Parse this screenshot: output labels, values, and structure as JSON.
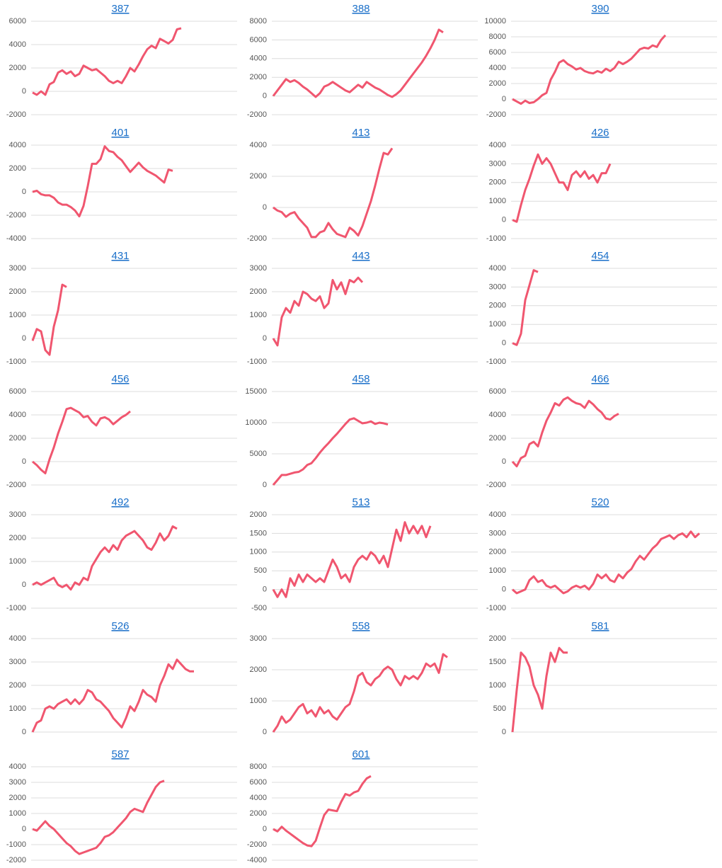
{
  "chart_data": [
    {
      "type": "line",
      "title": "387",
      "color": "#f0566f",
      "ylim": [
        -2000,
        6000
      ],
      "yticks": [
        -2000,
        0,
        2000,
        4000,
        6000
      ],
      "values": [
        -100,
        -300,
        0,
        -300,
        600,
        800,
        1600,
        1800,
        1500,
        1700,
        1300,
        1500,
        2200,
        2000,
        1800,
        1900,
        1600,
        1300,
        900,
        700,
        900,
        700,
        1300,
        2000,
        1700,
        2300,
        3000,
        3600,
        3900,
        3700,
        4500,
        4300,
        4100,
        4400,
        5300,
        5400
      ]
    },
    {
      "type": "line",
      "title": "388",
      "color": "#f0566f",
      "ylim": [
        -2000,
        8000
      ],
      "yticks": [
        -2000,
        0,
        2000,
        4000,
        6000,
        8000
      ],
      "values": [
        0,
        600,
        1200,
        1800,
        1500,
        1700,
        1400,
        1000,
        700,
        300,
        -100,
        300,
        1000,
        1200,
        1500,
        1200,
        900,
        600,
        400,
        800,
        1200,
        900,
        1500,
        1200,
        900,
        700,
        400,
        100,
        -100,
        200,
        600,
        1200,
        1800,
        2400,
        3000,
        3600,
        4300,
        5100,
        6000,
        7100,
        6800
      ]
    },
    {
      "type": "line",
      "title": "390",
      "color": "#f0566f",
      "ylim": [
        -2000,
        10000
      ],
      "yticks": [
        -2000,
        0,
        2000,
        4000,
        6000,
        8000,
        10000
      ],
      "values": [
        0,
        -300,
        -600,
        -200,
        -500,
        -400,
        0,
        500,
        800,
        2500,
        3500,
        4700,
        5000,
        4500,
        4200,
        3800,
        4000,
        3600,
        3400,
        3300,
        3600,
        3400,
        3900,
        3600,
        4000,
        4800,
        4500,
        4800,
        5200,
        5800,
        6400,
        6600,
        6500,
        6900,
        6700,
        7600,
        8200
      ]
    },
    {
      "type": "line",
      "title": "401",
      "color": "#f0566f",
      "ylim": [
        -4000,
        4000
      ],
      "yticks": [
        -4000,
        -2000,
        0,
        2000,
        4000
      ],
      "values": [
        0,
        100,
        -200,
        -300,
        -300,
        -500,
        -900,
        -1100,
        -1100,
        -1300,
        -1600,
        -2100,
        -1200,
        500,
        2400,
        2400,
        2800,
        3900,
        3500,
        3400,
        3000,
        2700,
        2200,
        1700,
        2100,
        2500,
        2100,
        1800,
        1600,
        1400,
        1100,
        800,
        1900,
        1800
      ]
    },
    {
      "type": "line",
      "title": "413",
      "color": "#f0566f",
      "ylim": [
        -2000,
        4000
      ],
      "yticks": [
        -2000,
        0,
        2000,
        4000
      ],
      "values": [
        0,
        -200,
        -300,
        -600,
        -400,
        -300,
        -700,
        -1000,
        -1300,
        -1900,
        -1900,
        -1600,
        -1500,
        -1000,
        -1400,
        -1700,
        -1800,
        -1900,
        -1300,
        -1500,
        -1800,
        -1200,
        -400,
        400,
        1400,
        2500,
        3500,
        3400,
        3800
      ]
    },
    {
      "type": "line",
      "title": "426",
      "color": "#f0566f",
      "ylim": [
        -1000,
        4000
      ],
      "yticks": [
        -1000,
        0,
        1000,
        2000,
        3000,
        4000
      ],
      "values": [
        0,
        -100,
        800,
        1600,
        2200,
        2900,
        3500,
        3000,
        3300,
        3000,
        2500,
        2000,
        2000,
        1600,
        2400,
        2600,
        2300,
        2600,
        2200,
        2400,
        2000,
        2500,
        2500,
        3000
      ]
    },
    {
      "type": "line",
      "title": "431",
      "color": "#f0566f",
      "ylim": [
        -1000,
        3000
      ],
      "yticks": [
        -1000,
        0,
        1000,
        2000,
        3000
      ],
      "values": [
        -100,
        400,
        300,
        -500,
        -700,
        500,
        1200,
        2300,
        2200
      ]
    },
    {
      "type": "line",
      "title": "443",
      "color": "#f0566f",
      "ylim": [
        -1000,
        3000
      ],
      "yticks": [
        -1000,
        0,
        1000,
        2000,
        3000
      ],
      "values": [
        0,
        -300,
        900,
        1300,
        1100,
        1600,
        1400,
        2000,
        1900,
        1700,
        1600,
        1800,
        1300,
        1500,
        2500,
        2100,
        2400,
        1900,
        2500,
        2400,
        2600,
        2400
      ]
    },
    {
      "type": "line",
      "title": "454",
      "color": "#f0566f",
      "ylim": [
        -1000,
        4000
      ],
      "yticks": [
        -1000,
        0,
        1000,
        2000,
        3000,
        4000
      ],
      "values": [
        0,
        -100,
        500,
        2300,
        3100,
        3900,
        3800
      ]
    },
    {
      "type": "line",
      "title": "456",
      "color": "#f0566f",
      "ylim": [
        -2000,
        6000
      ],
      "yticks": [
        -2000,
        0,
        2000,
        4000,
        6000
      ],
      "values": [
        0,
        -300,
        -700,
        -1000,
        200,
        1200,
        2400,
        3400,
        4500,
        4600,
        4400,
        4200,
        3800,
        3900,
        3400,
        3100,
        3700,
        3800,
        3600,
        3200,
        3500,
        3800,
        4000,
        4300
      ]
    },
    {
      "type": "line",
      "title": "458",
      "color": "#f0566f",
      "ylim": [
        0,
        15000
      ],
      "yticks": [
        0,
        5000,
        10000,
        15000
      ],
      "values": [
        0,
        800,
        1600,
        1600,
        1800,
        2000,
        2100,
        2500,
        3200,
        3500,
        4300,
        5200,
        6000,
        6700,
        7500,
        8200,
        9000,
        9800,
        10500,
        10700,
        10300,
        9900,
        10000,
        10200,
        9800,
        10000,
        9900,
        9700
      ]
    },
    {
      "type": "line",
      "title": "466",
      "color": "#f0566f",
      "ylim": [
        -2000,
        6000
      ],
      "yticks": [
        -2000,
        0,
        2000,
        4000,
        6000
      ],
      "values": [
        0,
        -400,
        300,
        500,
        1500,
        1700,
        1300,
        2500,
        3500,
        4200,
        5000,
        4800,
        5300,
        5500,
        5200,
        5000,
        4900,
        4600,
        5200,
        4900,
        4500,
        4200,
        3700,
        3600,
        3900,
        4100
      ]
    },
    {
      "type": "line",
      "title": "492",
      "color": "#f0566f",
      "ylim": [
        -1000,
        3000
      ],
      "yticks": [
        -1000,
        0,
        1000,
        2000,
        3000
      ],
      "values": [
        0,
        100,
        0,
        100,
        200,
        300,
        0,
        -100,
        0,
        -200,
        100,
        0,
        300,
        200,
        800,
        1100,
        1400,
        1600,
        1400,
        1700,
        1500,
        1900,
        2100,
        2200,
        2300,
        2100,
        1900,
        1600,
        1500,
        1800,
        2200,
        1900,
        2100,
        2500,
        2400
      ]
    },
    {
      "type": "line",
      "title": "513",
      "color": "#f0566f",
      "ylim": [
        -500,
        2000
      ],
      "yticks": [
        -500,
        0,
        500,
        1000,
        1500,
        2000
      ],
      "values": [
        0,
        -200,
        0,
        -200,
        300,
        100,
        400,
        200,
        400,
        300,
        200,
        300,
        200,
        500,
        800,
        600,
        300,
        400,
        200,
        600,
        800,
        900,
        800,
        1000,
        900,
        700,
        900,
        600,
        1100,
        1600,
        1300,
        1800,
        1500,
        1700,
        1500,
        1700,
        1400,
        1700
      ]
    },
    {
      "type": "line",
      "title": "520",
      "color": "#f0566f",
      "ylim": [
        -1000,
        4000
      ],
      "yticks": [
        -1000,
        0,
        1000,
        2000,
        3000,
        4000
      ],
      "values": [
        0,
        -200,
        -100,
        0,
        500,
        700,
        400,
        500,
        200,
        100,
        200,
        0,
        -200,
        -100,
        100,
        200,
        100,
        200,
        0,
        300,
        800,
        600,
        800,
        500,
        400,
        800,
        600,
        900,
        1100,
        1500,
        1800,
        1600,
        1900,
        2200,
        2400,
        2700,
        2800,
        2900,
        2700,
        2900,
        3000,
        2800,
        3100,
        2800,
        3000
      ]
    },
    {
      "type": "line",
      "title": "526",
      "color": "#f0566f",
      "ylim": [
        0,
        4000
      ],
      "yticks": [
        0,
        1000,
        2000,
        3000,
        4000
      ],
      "values": [
        0,
        400,
        500,
        1000,
        1100,
        1000,
        1200,
        1300,
        1400,
        1200,
        1400,
        1200,
        1400,
        1800,
        1700,
        1400,
        1300,
        1100,
        900,
        600,
        400,
        200,
        600,
        1100,
        900,
        1300,
        1800,
        1600,
        1500,
        1300,
        2000,
        2400,
        2900,
        2700,
        3100,
        2900,
        2700,
        2600,
        2600
      ]
    },
    {
      "type": "line",
      "title": "558",
      "color": "#f0566f",
      "ylim": [
        0,
        3000
      ],
      "yticks": [
        0,
        1000,
        2000,
        3000
      ],
      "values": [
        0,
        200,
        500,
        300,
        400,
        600,
        800,
        900,
        600,
        700,
        500,
        800,
        600,
        700,
        500,
        400,
        600,
        800,
        900,
        1300,
        1800,
        1900,
        1600,
        1500,
        1700,
        1800,
        2000,
        2100,
        2000,
        1700,
        1500,
        1800,
        1700,
        1800,
        1700,
        1900,
        2200,
        2100,
        2200,
        1900,
        2500,
        2400
      ]
    },
    {
      "type": "line",
      "title": "581",
      "color": "#f0566f",
      "ylim": [
        0,
        2000
      ],
      "yticks": [
        0,
        500,
        1000,
        1500,
        2000
      ],
      "values": [
        0,
        900,
        1700,
        1600,
        1400,
        1000,
        800,
        500,
        1200,
        1700,
        1500,
        1800,
        1700,
        1700
      ]
    },
    {
      "type": "line",
      "title": "587",
      "color": "#f0566f",
      "ylim": [
        -2000,
        4000
      ],
      "yticks": [
        -2000,
        -1000,
        0,
        1000,
        2000,
        3000,
        4000
      ],
      "values": [
        0,
        -100,
        200,
        500,
        200,
        0,
        -300,
        -600,
        -900,
        -1100,
        -1400,
        -1600,
        -1500,
        -1400,
        -1300,
        -1200,
        -900,
        -500,
        -400,
        -200,
        100,
        400,
        700,
        1100,
        1300,
        1200,
        1100,
        1700,
        2200,
        2700,
        3000,
        3100
      ]
    },
    {
      "type": "line",
      "title": "601",
      "color": "#f0566f",
      "ylim": [
        -4000,
        8000
      ],
      "yticks": [
        -4000,
        -2000,
        0,
        2000,
        4000,
        6000,
        8000
      ],
      "values": [
        0,
        -300,
        300,
        -200,
        -600,
        -1000,
        -1400,
        -1800,
        -2100,
        -2200,
        -1500,
        200,
        1800,
        2500,
        2400,
        2300,
        3500,
        4500,
        4300,
        4700,
        4900,
        5800,
        6500,
        6800
      ]
    }
  ]
}
